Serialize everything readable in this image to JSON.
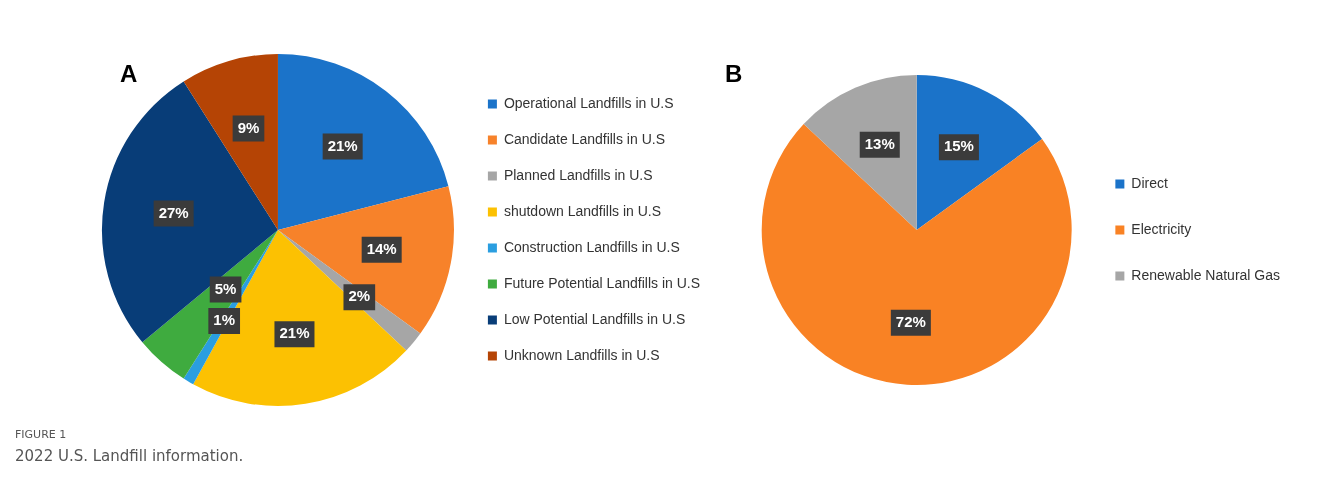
{
  "chart_data": [
    {
      "type": "pie",
      "title": "A",
      "categories": [
        "Operational Landfills in U.S",
        "Candidate Landfills in U.S",
        "Planned Landfills in U.S",
        "shutdown Landfills in U.S",
        "Construction Landfills in U.S",
        "Future Potential Landfills in U.S",
        "Low Potential Landfills in U.S",
        "Unknown Landfills in U.S"
      ],
      "values": [
        21,
        14,
        2,
        21,
        1,
        5,
        27,
        9
      ],
      "value_labels": [
        "21%",
        "14%",
        "2%",
        "21%",
        "1%",
        "5%",
        "27%",
        "9%"
      ],
      "colors": [
        "#1b73c9",
        "#f7822a",
        "#a6a6a6",
        "#fcc102",
        "#2a9ee0",
        "#3fab3f",
        "#083d78",
        "#b54405"
      ],
      "legend": "right",
      "annotations": [
        "FIGURE 1",
        "2022 U.S. Landfill information."
      ]
    },
    {
      "type": "pie",
      "title": "B",
      "categories": [
        "Direct",
        "Electricity",
        "Renewable Natural Gas"
      ],
      "values": [
        15,
        72,
        13
      ],
      "value_labels": [
        "15%",
        "72%",
        "13%"
      ],
      "colors": [
        "#1b73c9",
        "#f98224",
        "#a6a6a6"
      ],
      "legend": "right"
    }
  ]
}
